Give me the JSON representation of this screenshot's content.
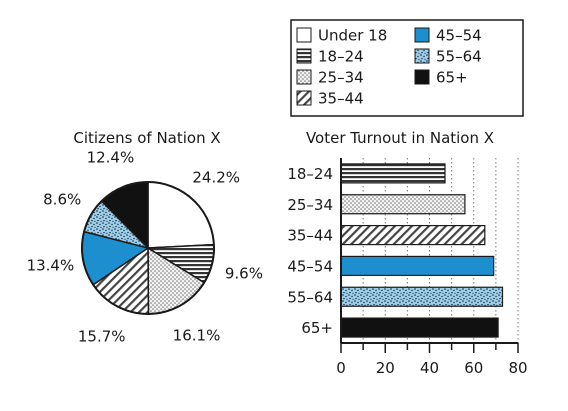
{
  "colors": {
    "ink": "#1a1a1a",
    "background": "#ffffff",
    "blue": "#1e8fce",
    "light_blue": "#9fcfe8",
    "black": "#111111"
  },
  "legend": {
    "items": [
      {
        "label": "Under 18",
        "pattern": "white"
      },
      {
        "label": "18–24",
        "pattern": "horizontal-lines"
      },
      {
        "label": "25–34",
        "pattern": "light-dots"
      },
      {
        "label": "35–44",
        "pattern": "diagonal-lines"
      },
      {
        "label": "45–54",
        "pattern": "solid-blue"
      },
      {
        "label": "55–64",
        "pattern": "blue-speckle"
      },
      {
        "label": "65+",
        "pattern": "solid-black"
      }
    ]
  },
  "chart_data": [
    {
      "type": "pie",
      "title": "Citizens of Nation X",
      "categories": [
        "Under 18",
        "18–24",
        "25–34",
        "35–44",
        "45–54",
        "55–64",
        "65+"
      ],
      "values": [
        24.2,
        9.6,
        16.1,
        15.7,
        13.4,
        8.6,
        12.4
      ],
      "labels": [
        "24.2%",
        "9.6%",
        "16.1%",
        "15.7%",
        "13.4%",
        "8.6%",
        "12.4%"
      ],
      "start": "12 o'clock, clockwise"
    },
    {
      "type": "bar",
      "orientation": "horizontal",
      "title": "Voter Turnout in Nation X",
      "categories": [
        "18–24",
        "25–34",
        "35–44",
        "45–54",
        "55–64",
        "65+"
      ],
      "values": [
        47,
        56,
        65,
        69,
        73,
        71
      ],
      "xlim": [
        0,
        80
      ],
      "xticks": [
        0,
        20,
        40,
        60,
        80
      ],
      "grid": "vertical dotted"
    }
  ]
}
